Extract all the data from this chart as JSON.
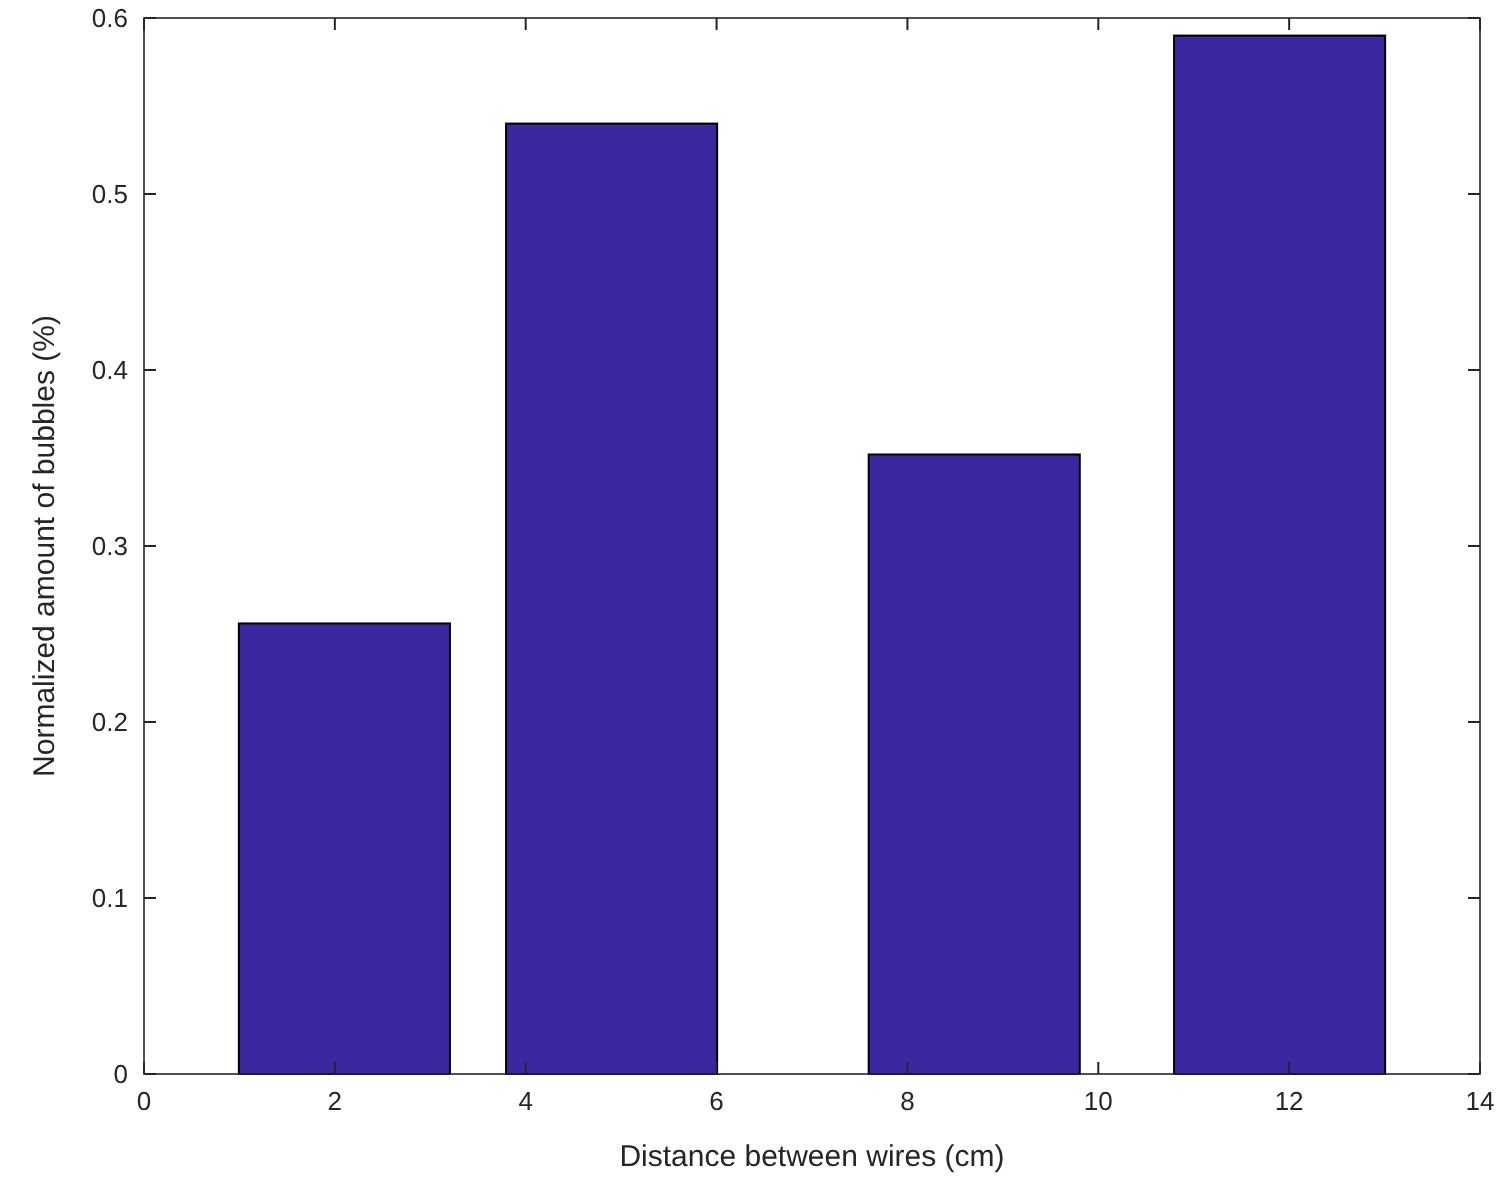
{
  "chart_data": {
    "type": "bar",
    "xlabel": "Distance between wires (cm)",
    "ylabel": "Normalized amount of bubbles (%)",
    "x": [
      2.1,
      4.9,
      8.7,
      11.9
    ],
    "values": [
      0.256,
      0.54,
      0.352,
      0.59
    ],
    "color": "#3d27a0",
    "xlim": [
      0,
      14
    ],
    "xticks": [
      0,
      2,
      4,
      6,
      8,
      10,
      12,
      14
    ],
    "ylim": [
      0,
      0.6
    ],
    "yticks": [
      0,
      0.1,
      0.2,
      0.3,
      0.4,
      0.5,
      0.6
    ],
    "grid": false
  }
}
